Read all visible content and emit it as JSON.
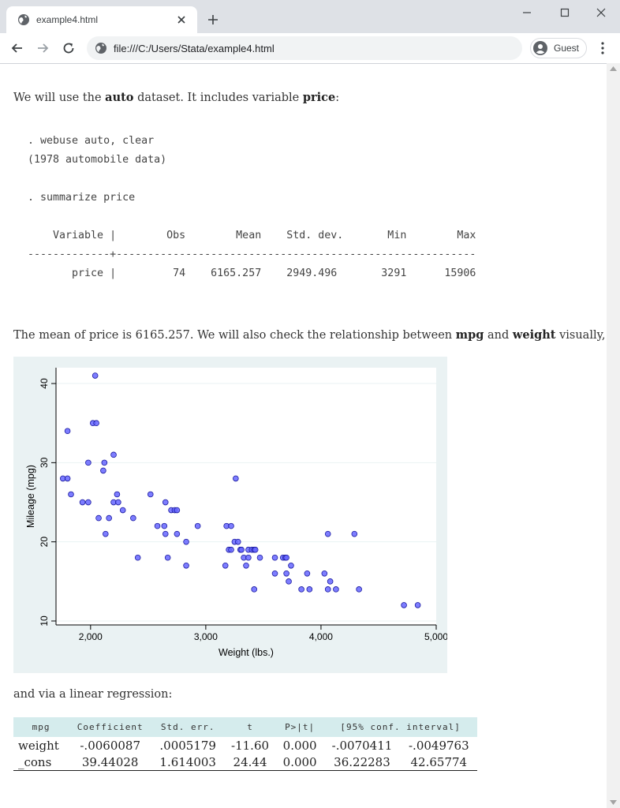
{
  "browser": {
    "tab_title": "example4.html",
    "url": "file:///C:/Users/Stata/example4.html",
    "profile_label": "Guest"
  },
  "content": {
    "para1": {
      "pre": "We will use the ",
      "b1": "auto",
      "mid": " dataset. It includes variable ",
      "b2": "price",
      "post": ":"
    },
    "code_lines": [
      ". webuse auto, clear",
      "(1978 automobile data)",
      "",
      ". summarize price",
      "",
      "    Variable |        Obs        Mean    Std. dev.       Min        Max",
      "-------------+---------------------------------------------------------",
      "       price |         74    6165.257    2949.496       3291      15906"
    ],
    "para2": {
      "pre": "The mean of price is 6165.257. We will also check the relationship between ",
      "b1": "mpg",
      "mid": " and ",
      "b2": "weight",
      "post": " visually,"
    },
    "para3": "and via a linear regression:"
  },
  "chart_data": {
    "type": "scatter",
    "title": "",
    "xlabel": "Weight (lbs.)",
    "ylabel": "Mileage (mpg)",
    "xlim": [
      1700,
      5000
    ],
    "ylim": [
      9.5,
      42
    ],
    "xticks": [
      2000,
      3000,
      4000,
      5000
    ],
    "xtick_labels": [
      "2,000",
      "3,000",
      "4,000",
      "5,000"
    ],
    "yticks": [
      10,
      20,
      30,
      40
    ],
    "ytick_labels": [
      "10",
      "20",
      "30",
      "40"
    ],
    "grid": true,
    "marker_color": "#6666ff",
    "points": [
      [
        1760,
        28
      ],
      [
        1800,
        28
      ],
      [
        1800,
        34
      ],
      [
        1830,
        26
      ],
      [
        1930,
        25
      ],
      [
        1980,
        25
      ],
      [
        1980,
        30
      ],
      [
        2020,
        35
      ],
      [
        2040,
        41
      ],
      [
        2050,
        35
      ],
      [
        2070,
        23
      ],
      [
        2110,
        29
      ],
      [
        2120,
        30
      ],
      [
        2130,
        21
      ],
      [
        2160,
        23
      ],
      [
        2200,
        31
      ],
      [
        2200,
        25
      ],
      [
        2230,
        26
      ],
      [
        2240,
        25
      ],
      [
        2280,
        24
      ],
      [
        2370,
        23
      ],
      [
        2410,
        18
      ],
      [
        2520,
        26
      ],
      [
        2580,
        22
      ],
      [
        2640,
        22
      ],
      [
        2650,
        25
      ],
      [
        2650,
        21
      ],
      [
        2670,
        18
      ],
      [
        2700,
        24
      ],
      [
        2730,
        24
      ],
      [
        2750,
        21
      ],
      [
        2750,
        24
      ],
      [
        2830,
        20
      ],
      [
        2830,
        17
      ],
      [
        2930,
        22
      ],
      [
        3170,
        17
      ],
      [
        3180,
        22
      ],
      [
        3200,
        19
      ],
      [
        3220,
        19
      ],
      [
        3220,
        22
      ],
      [
        3250,
        20
      ],
      [
        3260,
        28
      ],
      [
        3280,
        20
      ],
      [
        3300,
        19
      ],
      [
        3310,
        19
      ],
      [
        3330,
        18
      ],
      [
        3350,
        17
      ],
      [
        3370,
        18
      ],
      [
        3370,
        19
      ],
      [
        3400,
        19
      ],
      [
        3420,
        19
      ],
      [
        3420,
        14
      ],
      [
        3430,
        19
      ],
      [
        3470,
        18
      ],
      [
        3600,
        16
      ],
      [
        3600,
        18
      ],
      [
        3670,
        18
      ],
      [
        3690,
        18
      ],
      [
        3700,
        16
      ],
      [
        3700,
        18
      ],
      [
        3720,
        15
      ],
      [
        3740,
        17
      ],
      [
        3830,
        14
      ],
      [
        3880,
        16
      ],
      [
        3900,
        14
      ],
      [
        4030,
        16
      ],
      [
        4060,
        21
      ],
      [
        4060,
        14
      ],
      [
        4080,
        15
      ],
      [
        4130,
        14
      ],
      [
        4290,
        21
      ],
      [
        4330,
        14
      ],
      [
        4720,
        12
      ],
      [
        4840,
        12
      ]
    ]
  },
  "regression": {
    "headers": [
      "mpg",
      "Coefficient",
      "Std. err.",
      "t",
      "P>|t|",
      "[95% conf. interval]"
    ],
    "rows": [
      {
        "label": "weight",
        "coef": "-.0060087",
        "se": ".0005179",
        "t": "-11.60",
        "p": "0.000",
        "lo": "-.0070411",
        "hi": "-.0049763"
      },
      {
        "label": "_cons",
        "coef": "39.44028",
        "se": "1.614003",
        "t": "24.44",
        "p": "0.000",
        "lo": "36.22283",
        "hi": "42.65774"
      }
    ]
  }
}
